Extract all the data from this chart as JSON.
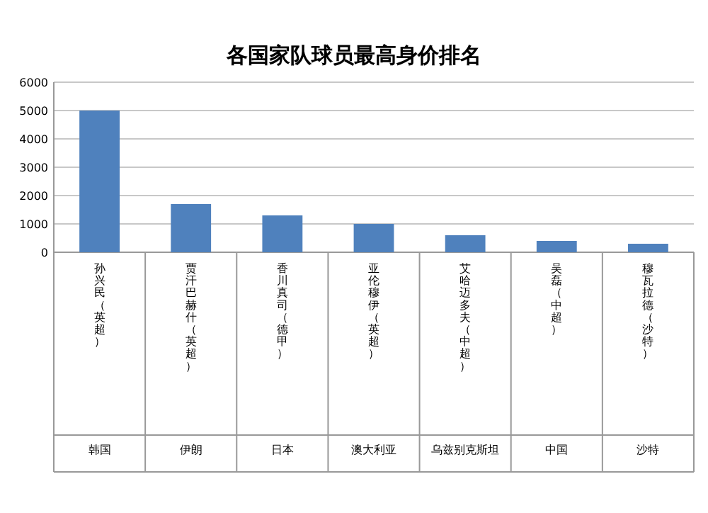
{
  "chart_data": {
    "type": "bar",
    "title": "各国家队球员最高身价排名",
    "categories": [
      "孙兴民（英超）",
      "贾汗巴赫什（英超）",
      "香川真司（德甲）",
      "亚伦穆伊（英超）",
      "艾哈迈多夫（中超）",
      "吴磊（中超）",
      "穆瓦拉德（沙特）"
    ],
    "values": [
      5000,
      1700,
      1300,
      1000,
      600,
      400,
      300
    ],
    "annotations": [
      "韩国",
      "伊朗",
      "日本",
      "澳大利亚",
      "乌兹别克斯坦",
      "中国",
      "沙特"
    ],
    "color": "#4f81bd",
    "ylim": [
      0,
      6000
    ],
    "yticks": [
      0,
      1000,
      2000,
      3000,
      4000,
      5000,
      6000
    ],
    "grid": "y"
  }
}
